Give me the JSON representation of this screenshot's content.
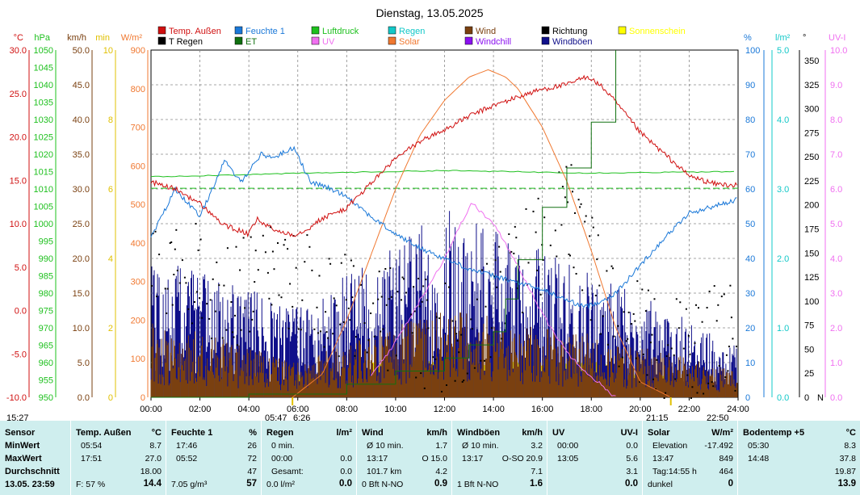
{
  "title": "Dienstag, 13.05.2025",
  "legend": [
    {
      "label": "Temp. Außen",
      "color": "#d01010",
      "row": 0,
      "col": 0
    },
    {
      "label": "Feuchte 1",
      "color": "#1a78d8",
      "row": 0,
      "col": 1
    },
    {
      "label": "Luftdruck",
      "color": "#1ec01e",
      "row": 0,
      "col": 2
    },
    {
      "label": "Regen",
      "color": "#12c8c8",
      "row": 0,
      "col": 3
    },
    {
      "label": "Wind",
      "color": "#7a4010",
      "row": 0,
      "col": 4
    },
    {
      "label": "Richtung",
      "color": "#000000",
      "row": 0,
      "col": 5
    },
    {
      "label": "Sonnenschein",
      "color": "#ffff00",
      "row": 0,
      "col": 6
    },
    {
      "label": "T Regen",
      "color": "#000000",
      "row": 1,
      "col": 0
    },
    {
      "label": "ET",
      "color": "#107010",
      "row": 1,
      "col": 1
    },
    {
      "label": "UV",
      "color": "#f070f0",
      "row": 1,
      "col": 2
    },
    {
      "label": "Solar",
      "color": "#f07830",
      "row": 1,
      "col": 3
    },
    {
      "label": "Windchill",
      "color": "#8a10f0",
      "row": 1,
      "col": 4
    },
    {
      "label": "Windböen",
      "color": "#10108a",
      "row": 1,
      "col": 5
    }
  ],
  "left_axes": [
    {
      "unit": "°C",
      "color": "#d01010",
      "ticks": [
        "30.0",
        "25.0",
        "20.0",
        "15.0",
        "10.0",
        "5.0",
        "0.0",
        "-5.0",
        "-10.0"
      ]
    },
    {
      "unit": "hPa",
      "color": "#1ec01e",
      "ticks": [
        "1050",
        "1045",
        "1040",
        "1035",
        "1030",
        "1025",
        "1020",
        "1015",
        "1010",
        "1005",
        "1000",
        "995",
        "990",
        "985",
        "980",
        "975",
        "970",
        "965",
        "960",
        "955",
        "950"
      ]
    },
    {
      "unit": "km/h",
      "color": "#7a4010",
      "ticks": [
        "50.0",
        "45.0",
        "40.0",
        "35.0",
        "30.0",
        "25.0",
        "20.0",
        "15.0",
        "10.0",
        "5.0",
        "0.0"
      ]
    },
    {
      "unit": "min",
      "color": "#e0c000",
      "ticks": [
        "10",
        "8",
        "6",
        "4",
        "2",
        "0"
      ]
    },
    {
      "unit": "W/m²",
      "color": "#f07830",
      "ticks": [
        "900",
        "800",
        "700",
        "600",
        "500",
        "400",
        "300",
        "200",
        "100",
        "0"
      ]
    }
  ],
  "right_axes": [
    {
      "unit": "%",
      "color": "#1a78d8",
      "ticks": [
        "100",
        "90",
        "80",
        "70",
        "60",
        "50",
        "40",
        "30",
        "20",
        "10",
        "0"
      ]
    },
    {
      "unit": "l/m²",
      "color": "#12c8c8",
      "ticks": [
        "5.0",
        "4.0",
        "3.0",
        "2.0",
        "1.0",
        "0.0"
      ]
    },
    {
      "unit": "°",
      "color": "#000000",
      "ticks": [
        "350",
        "325",
        "300",
        "275",
        "250",
        "225",
        "200",
        "175",
        "150",
        "125",
        "100",
        "75",
        "50",
        "25",
        "0"
      ],
      "extra": "N"
    },
    {
      "unit": "UV-I",
      "color": "#f070f0",
      "ticks": [
        "10.0",
        "9.0",
        "8.0",
        "7.0",
        "6.0",
        "5.0",
        "4.0",
        "3.0",
        "2.0",
        "1.0",
        "0.0"
      ]
    }
  ],
  "x_ticks": [
    "00:00",
    "02:00",
    "04:00",
    "06:00",
    "08:00",
    "10:00",
    "12:00",
    "14:00",
    "16:00",
    "18:00",
    "20:00",
    "22:00",
    "24:00"
  ],
  "sun_marks": {
    "left": "15:27",
    "sunrise": "05:47",
    "sunrise2": "6:26",
    "sunset": "21:15",
    "right": "22:50"
  },
  "chart_data": {
    "type": "line",
    "title": "Dienstag, 13.05.2025",
    "x_range": [
      "00:00",
      "24:00"
    ],
    "series": [
      {
        "name": "Temp. Außen",
        "unit": "°C",
        "x": [
          "00:00",
          "01:00",
          "02:00",
          "03:00",
          "04:00",
          "04:20",
          "05:00",
          "05:54",
          "06:30",
          "07:00",
          "08:00",
          "09:00",
          "10:00",
          "11:00",
          "12:00",
          "13:00",
          "14:00",
          "15:00",
          "16:00",
          "17:00",
          "17:51",
          "18:30",
          "19:00",
          "20:00",
          "21:00",
          "22:00",
          "23:00",
          "23:59"
        ],
        "values": [
          14.8,
          14.0,
          12.3,
          9.8,
          8.8,
          10.5,
          9.3,
          8.7,
          9.6,
          10.6,
          11.8,
          14.7,
          17.5,
          19.5,
          20.8,
          22.4,
          23.6,
          24.6,
          25.5,
          26.0,
          27.0,
          25.6,
          24.0,
          20.5,
          18.0,
          15.5,
          14.6,
          14.4
        ]
      },
      {
        "name": "Feuchte 1",
        "unit": "%",
        "x": [
          "00:00",
          "01:00",
          "02:00",
          "03:00",
          "03:40",
          "04:30",
          "05:00",
          "05:52",
          "06:30",
          "07:00",
          "08:00",
          "09:00",
          "10:00",
          "11:00",
          "12:00",
          "13:00",
          "14:00",
          "15:00",
          "16:00",
          "17:00",
          "17:46",
          "18:30",
          "19:00",
          "20:00",
          "21:00",
          "22:00",
          "23:00",
          "23:59"
        ],
        "values": [
          46,
          60,
          52,
          68,
          62,
          70,
          69,
          72,
          62,
          61,
          58,
          52,
          47,
          43,
          40,
          37,
          35,
          33,
          31,
          28,
          26,
          28,
          30,
          38,
          46,
          53,
          55,
          57
        ]
      },
      {
        "name": "Luftdruck",
        "unit": "hPa",
        "x": [
          "00:00",
          "06:00",
          "12:00",
          "18:00",
          "23:59"
        ],
        "values": [
          1013.5,
          1014.5,
          1015.3,
          1014.6,
          1015.0
        ]
      },
      {
        "name": "Solar",
        "unit": "W/m²",
        "x": [
          "05:47",
          "07:00",
          "08:00",
          "09:00",
          "10:00",
          "11:00",
          "12:00",
          "13:00",
          "13:47",
          "14:30",
          "15:00",
          "16:00",
          "17:00",
          "18:00",
          "19:00",
          "20:00",
          "21:15"
        ],
        "values": [
          0,
          60,
          200,
          370,
          540,
          680,
          770,
          830,
          849,
          830,
          800,
          700,
          560,
          380,
          180,
          40,
          0
        ]
      },
      {
        "name": "UV",
        "unit": "UV-I",
        "x": [
          "09:00",
          "10:00",
          "11:00",
          "12:00",
          "13:05",
          "14:00",
          "15:00",
          "16:00",
          "17:00",
          "18:00",
          "19:00"
        ],
        "values": [
          0.6,
          1.6,
          2.8,
          4.0,
          5.6,
          5.0,
          3.8,
          2.4,
          1.3,
          0.6,
          0
        ]
      },
      {
        "name": "ET",
        "unit": "l/m²",
        "x": [
          "00:00",
          "04:00",
          "08:00",
          "10:00",
          "12:00",
          "13:00",
          "14:00",
          "14:30",
          "15:00",
          "16:00",
          "17:00",
          "18:00",
          "19:00"
        ],
        "values": [
          0,
          0.05,
          0.2,
          0.4,
          0.6,
          0.8,
          1.0,
          1.5,
          2.1,
          2.9,
          3.5,
          4.2,
          5.3
        ]
      },
      {
        "name": "Wind",
        "unit": "km/h",
        "x": [
          "00:00",
          "06:00",
          "12:00",
          "18:00",
          "23:59"
        ],
        "values": [
          9,
          4,
          10,
          7,
          3
        ]
      },
      {
        "name": "Windböen",
        "unit": "km/h",
        "x": [
          "00:00",
          "06:00",
          "12:00",
          "18:00",
          "23:59"
        ],
        "values": [
          16,
          10,
          20.9,
          14,
          6
        ]
      },
      {
        "name": "Richtung",
        "unit": "°",
        "type": "scatter",
        "x": [
          "01:00",
          "03:00",
          "05:00",
          "07:00",
          "09:00",
          "11:00",
          "13:00",
          "15:00",
          "17:00",
          "19:00",
          "21:00",
          "23:00"
        ],
        "values": [
          150,
          100,
          140,
          110,
          90,
          70,
          60,
          140,
          200,
          80,
          50,
          60
        ]
      }
    ],
    "sunshine_minutes": {
      "x_range": [
        "05:47",
        "21:15"
      ],
      "approx_level": "0.5-1"
    }
  },
  "table": {
    "time_left": "15:27",
    "columns": [
      {
        "title": "Sensor",
        "unit": "",
        "rows": [
          [
            "MinWert",
            ""
          ],
          [
            "MaxWert",
            ""
          ],
          [
            "Durchschnitt",
            ""
          ]
        ],
        "foot_left": "13.05. 23:59",
        "foot_right": ""
      },
      {
        "title": "Temp. Außen",
        "unit": "°C",
        "rows": [
          [
            "05:54",
            "8.7"
          ],
          [
            "17:51",
            "27.0"
          ],
          [
            "",
            "18.00"
          ]
        ],
        "foot_left": "F: 57 %",
        "foot_right": "14.4"
      },
      {
        "title": "Feuchte 1",
        "unit": "%",
        "rows": [
          [
            "17:46",
            "26"
          ],
          [
            "05:52",
            "72"
          ],
          [
            "",
            "47"
          ]
        ],
        "foot_left": "7.05 g/m³",
        "foot_right": "57"
      },
      {
        "title": "Regen",
        "unit": "l/m²",
        "rows": [
          [
            "0 min.",
            ""
          ],
          [
            "00:00",
            "0.0"
          ],
          [
            "Gesamt:",
            "0.0"
          ]
        ],
        "foot_left": "0.0 l/m²",
        "foot_right": "0.0"
      },
      {
        "title": "Wind",
        "unit": "km/h",
        "rows": [
          [
            "Ø 10 min.",
            "1.7"
          ],
          [
            "13:17",
            "O 15.0"
          ],
          [
            "101.7 km",
            "4.2"
          ]
        ],
        "foot_left": "0 Bft N-NO",
        "foot_right": "0.9"
      },
      {
        "title": "Windböen",
        "unit": "km/h",
        "rows": [
          [
            "Ø 10 min.",
            "3.2"
          ],
          [
            "13:17",
            "O-SO 20.9"
          ],
          [
            "",
            "7.1"
          ]
        ],
        "foot_left": "1 Bft N-NO",
        "foot_right": "1.6"
      },
      {
        "title": "UV",
        "unit": "UV-I",
        "rows": [
          [
            "00:00",
            "0.0"
          ],
          [
            "13:05",
            "5.6"
          ],
          [
            "",
            "3.1"
          ]
        ],
        "foot_left": "",
        "foot_right": "0.0"
      },
      {
        "title": "Solar",
        "unit": "W/m²",
        "rows": [
          [
            "Elevation",
            "-17.492"
          ],
          [
            "13:47",
            "849"
          ],
          [
            "Tag:14:55 h",
            "464"
          ]
        ],
        "foot_left": "dunkel",
        "foot_right": "0"
      },
      {
        "title": "Bodentemp +5",
        "unit": "°C",
        "rows": [
          [
            "05:30",
            "8.3"
          ],
          [
            "14:48",
            "37.8"
          ],
          [
            "",
            "19.87"
          ]
        ],
        "foot_left": "",
        "foot_right": "13.9"
      }
    ]
  }
}
